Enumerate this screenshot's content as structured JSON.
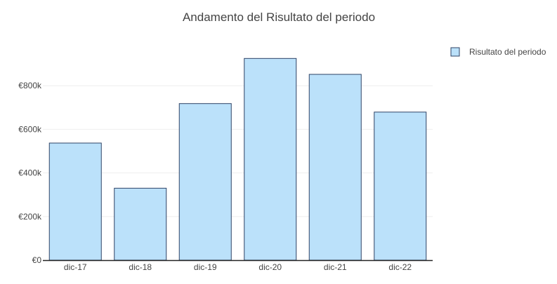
{
  "chart_data": {
    "type": "bar",
    "title": "Andamento del Risultato del periodo",
    "categories": [
      "dic-17",
      "dic-18",
      "dic-19",
      "dic-20",
      "dic-21",
      "dic-22"
    ],
    "series": [
      {
        "name": "Risultato del periodo",
        "values": [
          537000,
          330000,
          718000,
          925000,
          852000,
          679000
        ]
      }
    ],
    "ylim": [
      0,
      1000000
    ],
    "yticks": [
      0,
      200000,
      400000,
      600000,
      800000
    ],
    "ytick_labels": [
      "€0",
      "€200k",
      "€400k",
      "€600k",
      "€800k"
    ],
    "xlabel": "",
    "ylabel": "",
    "grid": true,
    "legend_position": "top-right",
    "colors": {
      "bar_fill": "#bbe1fa",
      "bar_stroke": "#2f4366"
    }
  }
}
